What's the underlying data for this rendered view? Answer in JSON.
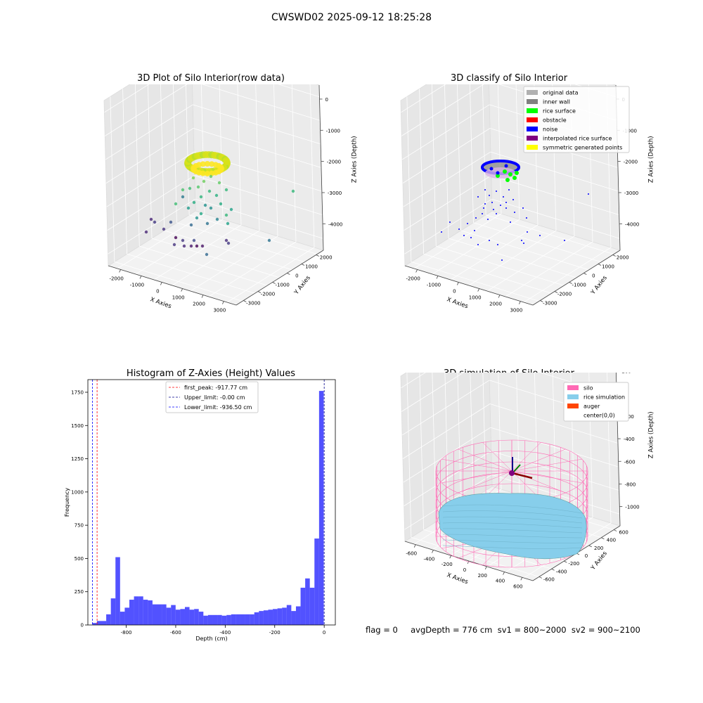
{
  "suptitle": "CWSWD02 2025-09-12 18:25:28",
  "panels": {
    "raw": {
      "title": "3D Plot of Silo Interior(row data)",
      "xlabel": "X Axies",
      "ylabel": "Y Axies",
      "zlabel": "Z Axies (Depth)",
      "xticks": [
        "-2000",
        "-1000",
        "0",
        "1000",
        "2000",
        "3000"
      ],
      "yticks": [
        "2000",
        "1000",
        "0",
        "-1000",
        "-2000",
        "-3000"
      ],
      "zticks": [
        "0",
        "-1000",
        "-2000",
        "-3000",
        "-4000"
      ]
    },
    "classify": {
      "title": "3D classify of Silo Interior",
      "xlabel": "X Axies",
      "ylabel": "Y Axies",
      "zlabel": "Z Axies (Depth)",
      "xticks": [
        "-2000",
        "-1000",
        "0",
        "1000",
        "2000",
        "3000"
      ],
      "yticks": [
        "2000",
        "1000",
        "0",
        "-1000",
        "-2000",
        "-3000"
      ],
      "zticks": [
        "0",
        "-1000",
        "-2000",
        "-3000",
        "-4000"
      ],
      "legend": [
        {
          "label": "original data",
          "color": "#b0b0b0"
        },
        {
          "label": "inner wall",
          "color": "#808080"
        },
        {
          "label": "rice surface",
          "color": "#00ff00"
        },
        {
          "label": "obstacle",
          "color": "#ff0000"
        },
        {
          "label": "noise",
          "color": "#0000ff"
        },
        {
          "label": "interpolated rice surface",
          "color": "#800080"
        },
        {
          "label": "symmetric generated points",
          "color": "#ffff00"
        }
      ]
    },
    "simulation": {
      "title": "3D simulation of Silo Interior",
      "xlabel": "X Axies",
      "ylabel": "Y Axies",
      "zlabel": "Z Axies (Depth)",
      "xticks": [
        "-600",
        "-400",
        "-200",
        "0",
        "200",
        "400",
        "600"
      ],
      "yticks": [
        "600",
        "400",
        "200",
        "0",
        "-200",
        "-400",
        "-600"
      ],
      "zticks": [
        "200",
        "0",
        "-200",
        "-400",
        "-600",
        "-800",
        "-1000"
      ],
      "legend": [
        {
          "label": "silo",
          "color": "#ff69b4"
        },
        {
          "label": "rice simulation",
          "color": "#87ceeb"
        },
        {
          "label": "auger",
          "color": "#ff4500"
        },
        {
          "label": "center(0,0)",
          "color": "#ffffff"
        }
      ]
    }
  },
  "status": "flag = 0     avgDepth = 776 cm  sv1 = 800~2000  sv2 = 900~2100",
  "chart_data": [
    {
      "type": "histogram",
      "title": "Histogram of Z-Axies (Height) Values",
      "xlabel": "Depth (cm)",
      "ylabel": "Frequency",
      "bar_color": "#0000ff",
      "xlim": [
        -955,
        45
      ],
      "ylim": [
        0,
        1845
      ],
      "xticks": [
        -800,
        -600,
        -400,
        -200,
        0
      ],
      "yticks": [
        0,
        250,
        500,
        750,
        1000,
        1250,
        1500,
        1750
      ],
      "bin_start": -937,
      "bin_width": 18.7,
      "counts": [
        15,
        30,
        30,
        80,
        200,
        510,
        100,
        130,
        190,
        215,
        215,
        190,
        185,
        155,
        155,
        155,
        130,
        150,
        115,
        120,
        135,
        115,
        120,
        100,
        70,
        75,
        75,
        75,
        70,
        75,
        80,
        80,
        80,
        80,
        80,
        95,
        105,
        110,
        115,
        120,
        125,
        130,
        150,
        105,
        140,
        280,
        350,
        280,
        650,
        1760
      ],
      "vlines": [
        {
          "label": "first_peak: -917.77 cm",
          "x": -917.77,
          "color": "#ff0000"
        },
        {
          "label": "Upper_limit: -0.00 cm",
          "x": 0,
          "color": "#00008b"
        },
        {
          "label": "Lower_limit: -936.50 cm",
          "x": -936.5,
          "color": "#0000ff"
        }
      ],
      "legend_position": "top-center"
    }
  ]
}
